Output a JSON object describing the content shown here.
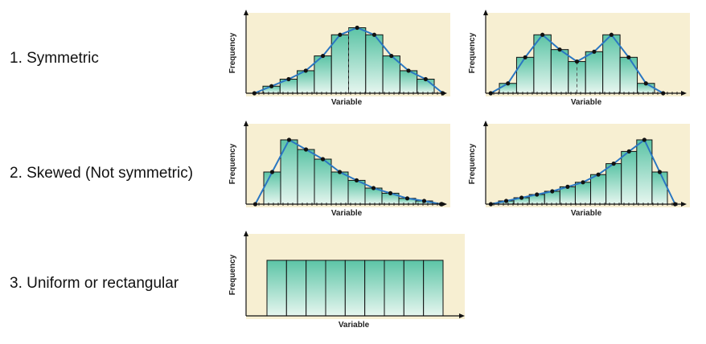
{
  "labels": {
    "symmetric": "1. Symmetric",
    "skewed": "2. Skewed (Not symmetric)",
    "uniform": "3. Uniform or rectangular"
  },
  "colors": {
    "panel_bg": "#f7efd2",
    "bar_top": "#5cc4a6",
    "bar_bottom": "#e6f6ef",
    "bar_stroke": "#111111",
    "polygon": "#2a77c2",
    "point": "#111111"
  },
  "chart_data": [
    {
      "id": "symmetric",
      "type": "histogram",
      "xlabel": "Variable",
      "ylabel": "Frequency",
      "values": [
        1,
        2,
        3.2,
        5.3,
        8.3,
        9.3,
        8.3,
        5.3,
        3.2,
        2
      ],
      "ylim": [
        0,
        10.5
      ],
      "polygon": true,
      "peak_line_at": 5,
      "grid": false
    },
    {
      "id": "bimodal",
      "type": "histogram",
      "xlabel": "Variable",
      "ylabel": "Frequency",
      "values": [
        1.4,
        5.1,
        8.3,
        6.2,
        4.5,
        5.9,
        8.3,
        5.1,
        1.4
      ],
      "ylim": [
        0,
        10.5
      ],
      "polygon": true,
      "dip_line_at": 4.5,
      "grid": false
    },
    {
      "id": "right-skewed",
      "type": "histogram",
      "xlabel": "Variable",
      "ylabel": "Frequency",
      "values": [
        5,
        10,
        8.5,
        7,
        5,
        3.7,
        2.5,
        1.7,
        0.9,
        0.5
      ],
      "ylim": [
        0,
        11.5
      ],
      "polygon": true,
      "grid": false
    },
    {
      "id": "left-skewed",
      "type": "histogram",
      "xlabel": "Variable",
      "ylabel": "Frequency",
      "values": [
        0.5,
        1,
        1.5,
        2,
        2.7,
        3.4,
        4.6,
        6.3,
        8.2,
        10,
        5
      ],
      "ylim": [
        0,
        11.5
      ],
      "polygon": true,
      "grid": false
    },
    {
      "id": "uniform",
      "type": "histogram",
      "xlabel": "Variable",
      "ylabel": "Frequency",
      "values": [
        5,
        5,
        5,
        5,
        5,
        5,
        5,
        5,
        5
      ],
      "ylim": [
        0,
        6.8
      ],
      "polygon": false,
      "grid": false
    }
  ]
}
